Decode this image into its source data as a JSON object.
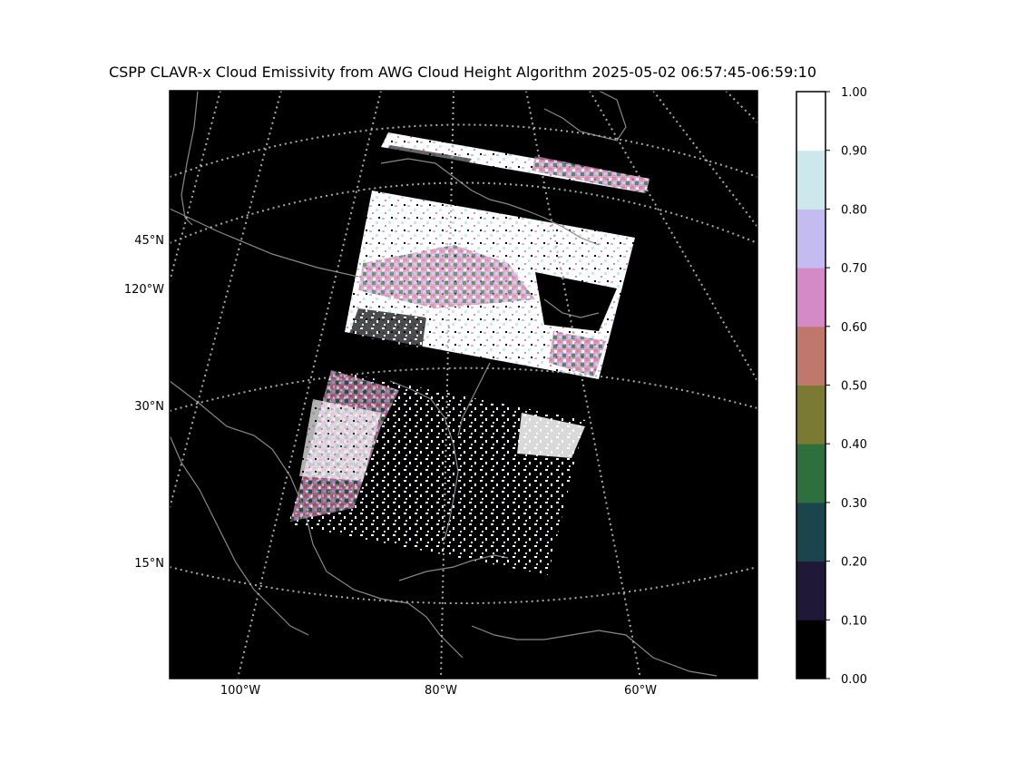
{
  "title": "CSPP CLAVR-x Cloud Emissivity from AWG Cloud Height Algorithm 2025-05-02 06:57:45-06:59:10",
  "map": {
    "lat_labels": [
      "45°N",
      "30°N",
      "15°N"
    ],
    "lon_left_label": "120°W",
    "lon_bottom_labels": [
      "100°W",
      "80°W",
      "60°W"
    ],
    "background": "#000000",
    "coastline_color": "#888888",
    "graticule_color": "#aaaaaa"
  },
  "colorbar": {
    "ticks": [
      "0.00",
      "0.10",
      "0.20",
      "0.30",
      "0.40",
      "0.50",
      "0.60",
      "0.70",
      "0.80",
      "0.90",
      "1.00"
    ],
    "colors": [
      "#000000",
      "#1f1937",
      "#1a454c",
      "#2d703d",
      "#7a7a32",
      "#c1786c",
      "#d48ac4",
      "#c4bcf0",
      "#cde8ec",
      "#ffffff"
    ]
  }
}
